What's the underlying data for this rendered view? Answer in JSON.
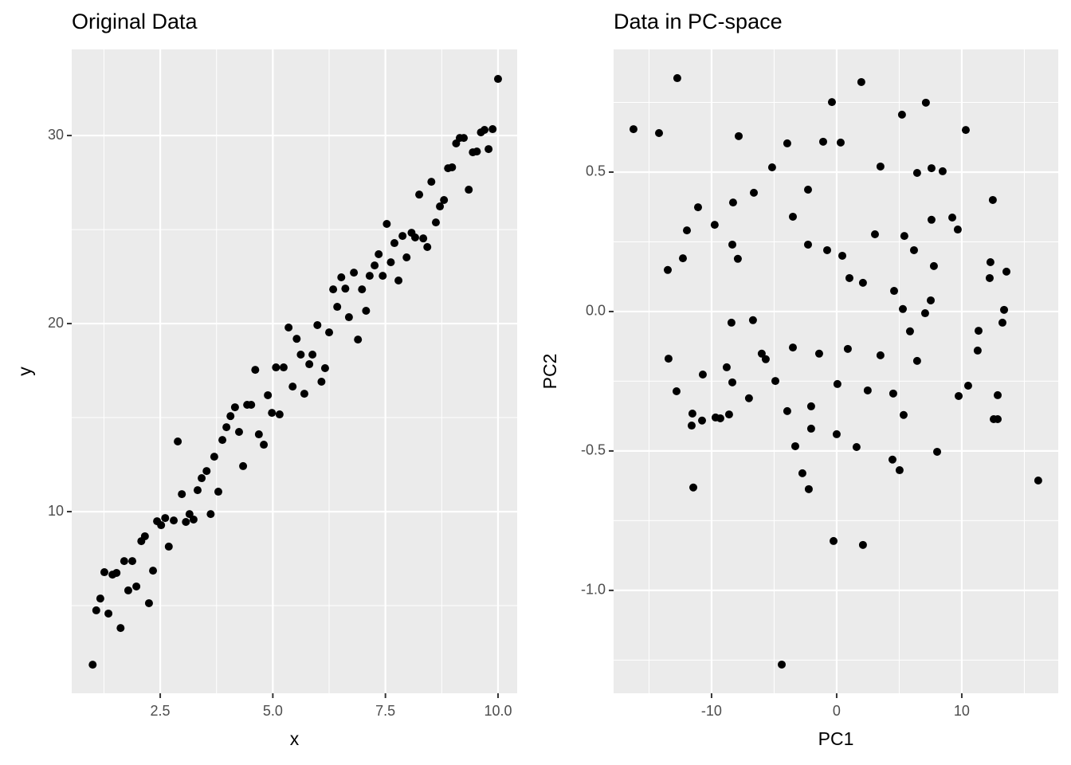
{
  "chart_data": [
    {
      "type": "scatter",
      "title": "Original Data",
      "x_label": "x",
      "y_label": "y",
      "color": "#000000",
      "grid": true,
      "xlim": [
        0.535,
        10.425
      ],
      "ylim": [
        0.34,
        34.58
      ],
      "xticks": [
        2.5,
        {
          "value": 5,
          "label": "5.0"
        },
        7.5,
        {
          "value": 10,
          "label": "10.0"
        }
      ],
      "yticks": [
        10,
        20,
        30
      ],
      "x": [
        1.0,
        1.08,
        1.17,
        1.26,
        1.35,
        1.44,
        1.53,
        1.62,
        1.7,
        1.79,
        1.88,
        1.97,
        2.08,
        2.16,
        2.25,
        2.34,
        2.43,
        2.52,
        2.61,
        2.69,
        2.8,
        2.89,
        2.98,
        3.07,
        3.15,
        3.24,
        3.33,
        3.42,
        3.53,
        3.62,
        3.7,
        3.79,
        3.88,
        3.97,
        4.06,
        4.16,
        4.25,
        4.34,
        4.43,
        4.52,
        4.61,
        4.69,
        4.8,
        4.89,
        4.98,
        5.07,
        5.15,
        5.24,
        5.35,
        5.44,
        5.53,
        5.62,
        5.7,
        5.81,
        5.88,
        5.99,
        6.08,
        6.16,
        6.25,
        6.34,
        6.43,
        6.52,
        6.61,
        6.69,
        6.8,
        6.89,
        6.98,
        7.07,
        7.15,
        7.26,
        7.35,
        7.44,
        7.53,
        7.62,
        7.7,
        7.79,
        7.88,
        7.97,
        8.08,
        8.16,
        8.25,
        8.34,
        8.43,
        8.52,
        8.62,
        8.71,
        8.8,
        8.89,
        8.98,
        9.07,
        9.15,
        9.24,
        9.35,
        9.44,
        9.53,
        9.62,
        9.7,
        9.79,
        9.88,
        10.0
      ],
      "values": [
        1.86,
        4.75,
        5.38,
        6.78,
        4.58,
        6.65,
        6.74,
        3.81,
        7.37,
        5.81,
        7.37,
        6.02,
        8.43,
        8.69,
        5.13,
        6.86,
        9.49,
        9.28,
        9.66,
        8.14,
        9.53,
        13.73,
        10.93,
        9.45,
        9.87,
        9.58,
        11.14,
        11.78,
        12.16,
        9.87,
        12.92,
        11.06,
        13.81,
        14.49,
        15.08,
        15.55,
        14.24,
        12.42,
        15.68,
        15.68,
        17.54,
        14.11,
        13.56,
        16.19,
        15.25,
        17.67,
        15.17,
        17.67,
        19.79,
        16.65,
        19.19,
        18.35,
        16.27,
        17.84,
        18.35,
        19.92,
        16.91,
        17.63,
        19.53,
        21.82,
        20.89,
        22.46,
        21.86,
        20.34,
        22.71,
        19.15,
        21.82,
        20.68,
        22.54,
        23.09,
        23.69,
        22.54,
        25.3,
        23.26,
        24.28,
        22.29,
        24.66,
        23.52,
        24.83,
        24.58,
        26.86,
        24.53,
        24.07,
        27.54,
        25.38,
        26.23,
        26.57,
        28.26,
        28.31,
        29.58,
        29.87,
        29.87,
        27.12,
        29.11,
        29.15,
        30.17,
        30.3,
        29.28,
        30.34,
        33.01
      ]
    },
    {
      "type": "scatter",
      "title": "Data in PC-space",
      "x_label": "PC1",
      "y_label": "PC2",
      "color": "#000000",
      "grid": true,
      "xlim": [
        -17.83,
        17.71
      ],
      "ylim": [
        -1.369,
        0.94
      ],
      "xticks": [
        -10,
        0,
        10
      ],
      "yticks": [
        {
          "value": -1,
          "label": "-1.0"
        },
        -0.5,
        {
          "value": 0,
          "label": "0.0"
        },
        0.5
      ],
      "x": [
        -16.24,
        -14.2,
        -12.74,
        -13.5,
        -13.44,
        -12.8,
        -11.97,
        -12.29,
        -11.08,
        -11.53,
        -11.59,
        -11.46,
        -10.76,
        -10.7,
        -9.75,
        -9.68,
        -9.3,
        -8.79,
        -8.6,
        -8.34,
        -8.28,
        -8.41,
        -8.34,
        -7.9,
        -7.83,
        -7.01,
        -6.69,
        -6.62,
        -5.99,
        -5.67,
        -5.16,
        -4.9,
        -4.39,
        -3.95,
        -3.95,
        -3.5,
        -3.5,
        -3.31,
        -2.74,
        -2.29,
        -2.29,
        -2.23,
        -2.04,
        -2.04,
        -1.4,
        -1.08,
        -0.76,
        -0.38,
        -0.25,
        0.0,
        0.06,
        0.32,
        0.45,
        0.89,
        1.02,
        1.59,
        1.97,
        2.1,
        2.1,
        2.48,
        3.06,
        3.5,
        3.5,
        4.46,
        4.52,
        4.59,
        5.03,
        5.22,
        5.29,
        5.35,
        5.41,
        5.86,
        6.18,
        6.43,
        6.43,
        7.07,
        7.13,
        7.52,
        7.58,
        7.58,
        7.77,
        8.03,
        8.47,
        9.24,
        9.68,
        9.75,
        10.32,
        10.51,
        11.27,
        11.34,
        12.23,
        12.29,
        12.48,
        12.55,
        12.87,
        12.87,
        13.25,
        13.38,
        13.57,
        16.11
      ],
      "values": [
        0.654,
        0.64,
        0.837,
        0.149,
        -0.169,
        -0.286,
        0.291,
        0.191,
        0.374,
        -0.366,
        -0.409,
        -0.631,
        -0.391,
        -0.226,
        0.311,
        -0.38,
        -0.383,
        -0.2,
        -0.369,
        0.24,
        0.391,
        -0.04,
        -0.254,
        0.189,
        0.629,
        -0.311,
        -0.031,
        0.426,
        -0.151,
        -0.171,
        0.517,
        -0.249,
        -1.266,
        -0.357,
        0.603,
        -0.129,
        0.34,
        -0.483,
        -0.58,
        0.437,
        0.24,
        -0.637,
        -0.34,
        -0.42,
        -0.151,
        0.609,
        0.22,
        0.751,
        -0.823,
        -0.44,
        -0.26,
        0.606,
        0.2,
        -0.134,
        0.12,
        -0.486,
        0.823,
        0.103,
        -0.837,
        -0.283,
        0.277,
        0.52,
        -0.157,
        -0.531,
        -0.294,
        0.074,
        -0.569,
        0.706,
        0.009,
        -0.371,
        0.271,
        -0.071,
        0.22,
        -0.177,
        0.497,
        -0.006,
        0.749,
        0.04,
        0.329,
        0.514,
        0.163,
        -0.503,
        0.503,
        0.337,
        0.294,
        -0.303,
        0.651,
        -0.266,
        -0.14,
        -0.069,
        0.12,
        0.177,
        0.4,
        -0.386,
        -0.386,
        -0.3,
        -0.04,
        0.006,
        0.143,
        -0.606
      ]
    }
  ]
}
